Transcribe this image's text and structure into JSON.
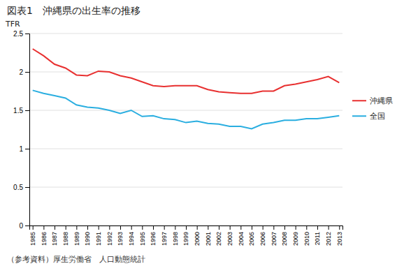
{
  "chart_data": {
    "type": "line",
    "title": "図表1　沖縄県の出生率の推移",
    "y_label": "TFR",
    "annotations": [
      "（参考資料）厚生労働省　人口動態統計"
    ],
    "x": [
      1985,
      1986,
      1987,
      1988,
      1989,
      1990,
      1991,
      1992,
      1993,
      1994,
      1995,
      1996,
      1997,
      1998,
      1999,
      2000,
      2001,
      2002,
      2003,
      2004,
      2005,
      2006,
      2007,
      2008,
      2009,
      2010,
      2011,
      2012,
      2013
    ],
    "xlim": [
      1984.7,
      2013.3
    ],
    "xticks": [
      1985,
      1986,
      1987,
      1988,
      1989,
      1990,
      1991,
      1992,
      1993,
      1994,
      1995,
      1996,
      1997,
      1998,
      1999,
      2000,
      2001,
      2002,
      2003,
      2004,
      2005,
      2006,
      2007,
      2008,
      2009,
      2010,
      2011,
      2012,
      2013
    ],
    "ylim": [
      0,
      2.5
    ],
    "yticks": [
      0,
      0.5,
      1,
      1.5,
      2,
      2.5
    ],
    "grid": true,
    "legend": "right",
    "series": [
      {
        "name": "沖縄県",
        "color": "#e83030",
        "values": [
          2.3,
          2.21,
          2.1,
          2.05,
          1.96,
          1.95,
          2.01,
          2.0,
          1.95,
          1.92,
          1.87,
          1.82,
          1.81,
          1.82,
          1.82,
          1.82,
          1.77,
          1.74,
          1.73,
          1.72,
          1.72,
          1.75,
          1.75,
          1.82,
          1.84,
          1.87,
          1.9,
          1.94,
          1.86
        ]
      },
      {
        "name": "全国",
        "color": "#2aaee0",
        "values": [
          1.76,
          1.72,
          1.69,
          1.66,
          1.57,
          1.54,
          1.53,
          1.5,
          1.46,
          1.5,
          1.42,
          1.43,
          1.39,
          1.38,
          1.34,
          1.36,
          1.33,
          1.32,
          1.29,
          1.29,
          1.26,
          1.32,
          1.34,
          1.37,
          1.37,
          1.39,
          1.39,
          1.41,
          1.43
        ]
      }
    ]
  }
}
